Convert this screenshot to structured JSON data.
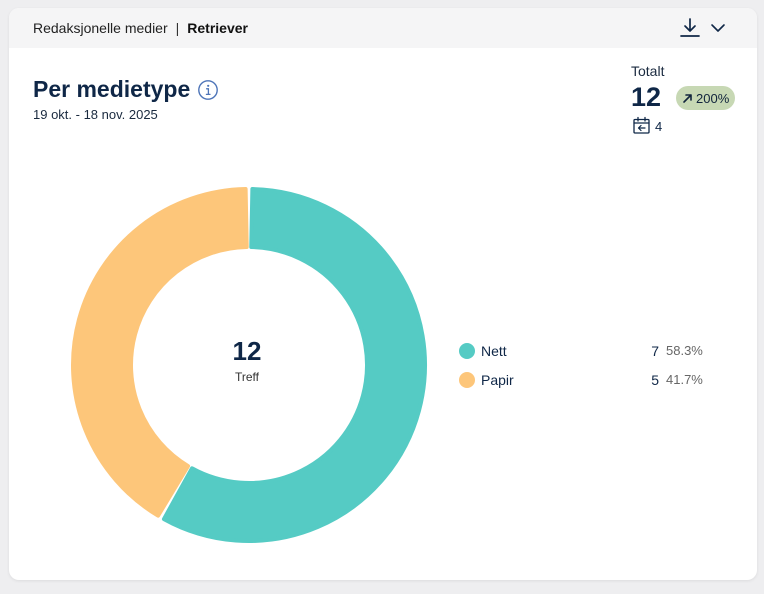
{
  "header": {
    "breadcrumb_parent": "Redaksjonelle medier",
    "separator": "|",
    "breadcrumb_current": "Retriever"
  },
  "widget": {
    "title": "Per medietype",
    "date_range": "19 okt. - 18 nov. 2025"
  },
  "totals": {
    "label": "Totalt",
    "value": "12",
    "change": "200%",
    "previous_period_value": "4"
  },
  "colors": {
    "nett": "#55cbc4",
    "papir": "#fdc67a",
    "badge": "#c7d8b4"
  },
  "chart_data": {
    "type": "pie",
    "variant": "donut",
    "center_value": "12",
    "center_label": "Treff",
    "series": [
      {
        "name": "Nett",
        "value": 7,
        "value_label": "7",
        "percent": 58.3,
        "percent_label": "58.3%",
        "color": "#55cbc4"
      },
      {
        "name": "Papir",
        "value": 5,
        "value_label": "5",
        "percent": 41.7,
        "percent_label": "41.7%",
        "color": "#fdc67a"
      }
    ]
  }
}
